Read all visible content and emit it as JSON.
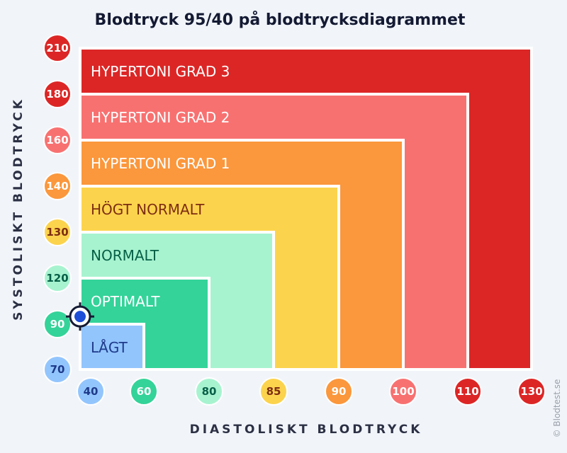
{
  "chart_data": {
    "type": "blood-pressure-zones",
    "title": "Blodtryck 95/40 på blodtrycksdiagrammet",
    "xlabel": "DIASTOLISKT BLODTRYCK",
    "ylabel": "SYSTOLISKT BLODTRYCK",
    "x_ticks": [
      "40",
      "60",
      "80",
      "85",
      "90",
      "100",
      "110",
      "130"
    ],
    "y_ticks": [
      "70",
      "90",
      "120",
      "130",
      "140",
      "160",
      "180",
      "210"
    ],
    "zones": [
      {
        "name": "HYPERTONI GRAD 3",
        "systolic_max": 210,
        "diastolic_max": 130,
        "color": "#dc2626",
        "label_color": "#ffffff"
      },
      {
        "name": "HYPERTONI GRAD 2",
        "systolic_max": 180,
        "diastolic_max": 110,
        "color": "#f87171",
        "label_color": "#ffffff"
      },
      {
        "name": "HYPERTONI GRAD 1",
        "systolic_max": 160,
        "diastolic_max": 100,
        "color": "#fb973c",
        "label_color": "#ffffff"
      },
      {
        "name": "HÖGT NORMALT",
        "systolic_max": 140,
        "diastolic_max": 90,
        "color": "#fcd34d",
        "label_color": "#7c2d12"
      },
      {
        "name": "NORMALT",
        "systolic_max": 130,
        "diastolic_max": 85,
        "color": "#a7f3d0",
        "label_color": "#065f46"
      },
      {
        "name": "OPTIMALT",
        "systolic_max": 120,
        "diastolic_max": 80,
        "color": "#34d399",
        "label_color": "#ffffff"
      },
      {
        "name": "LÅGT",
        "systolic_max": 90,
        "diastolic_max": 60,
        "color": "#93c5fd",
        "label_color": "#1e3a8a"
      }
    ],
    "tick_colors": {
      "x": [
        "#93c5fd",
        "#34d399",
        "#a7f3d0",
        "#fcd34d",
        "#fb973c",
        "#f87171",
        "#dc2626",
        "#dc2626"
      ],
      "y": [
        "#93c5fd",
        "#34d399",
        "#a7f3d0",
        "#fcd34d",
        "#fb973c",
        "#f87171",
        "#dc2626",
        "#dc2626"
      ]
    },
    "tick_text_colors": {
      "x": [
        "#1e3a8a",
        "#ffffff",
        "#065f46",
        "#7c2d12",
        "#ffffff",
        "#ffffff",
        "#ffffff",
        "#ffffff"
      ],
      "y": [
        "#1e3a8a",
        "#ffffff",
        "#065f46",
        "#7c2d12",
        "#ffffff",
        "#ffffff",
        "#ffffff",
        "#ffffff"
      ]
    },
    "marker": {
      "systolic": 95,
      "diastolic": 40,
      "color": "#1d4ed8"
    },
    "grid": false,
    "legend": "none"
  },
  "credit": "© Blodtest.se"
}
